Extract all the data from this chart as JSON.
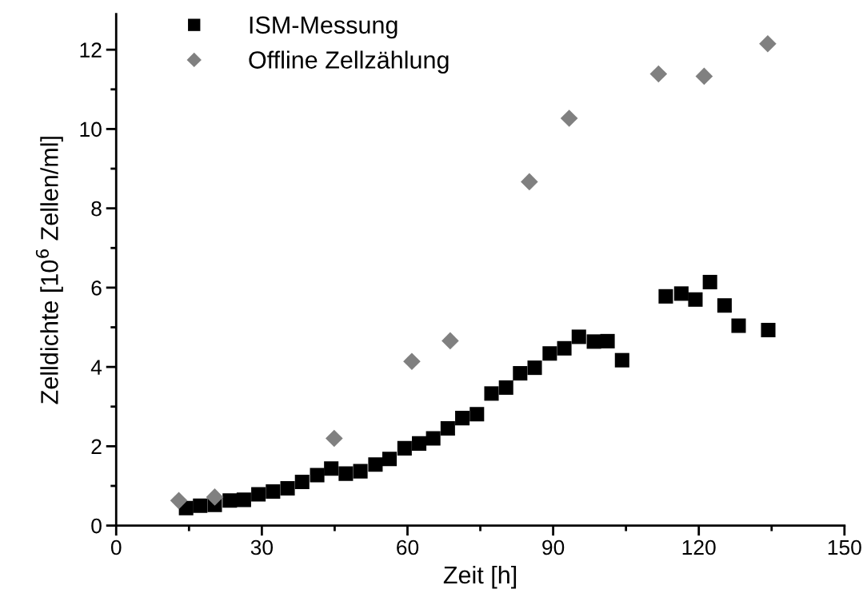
{
  "chart_data": {
    "type": "scatter",
    "xlabel": "Zeit [h]",
    "ylabel": "Zelldichte [10$^{6}$ Zellen/ml]",
    "xlim": [
      0,
      150
    ],
    "xticks": [
      0,
      30,
      60,
      90,
      120,
      150
    ],
    "ylim": [
      0,
      12.9
    ],
    "yticks": [
      0,
      2,
      4,
      6,
      8,
      10,
      12
    ],
    "grid": false,
    "legend": "top left",
    "series": [
      {
        "name": "ISM-Messung",
        "color": "#000000",
        "marker": "square",
        "x": [
          14.4,
          17.3,
          20.3,
          23.4,
          26.3,
          29.3,
          32.3,
          35.3,
          38.3,
          41.4,
          44.3,
          47.3,
          50.3,
          53.4,
          56.3,
          59.4,
          62.4,
          65.3,
          68.3,
          71.3,
          74.3,
          77.3,
          80.3,
          83.2,
          86.2,
          89.3,
          92.3,
          95.3,
          98.4,
          101.2,
          104.2,
          113.2,
          116.4,
          119.3,
          122.3,
          125.3,
          128.2,
          134.3
        ],
        "values": [
          0.44,
          0.5,
          0.52,
          0.63,
          0.65,
          0.79,
          0.86,
          0.94,
          1.1,
          1.27,
          1.44,
          1.31,
          1.37,
          1.54,
          1.68,
          1.95,
          2.07,
          2.2,
          2.45,
          2.71,
          2.81,
          3.33,
          3.48,
          3.84,
          3.98,
          4.34,
          4.47,
          4.76,
          4.64,
          4.65,
          4.17,
          5.78,
          5.85,
          5.7,
          6.14,
          5.55,
          5.04,
          4.93
        ]
      },
      {
        "name": "Offline Zellzählung",
        "color": "#808080",
        "marker": "diamond",
        "x": [
          12.9,
          20.3,
          44.9,
          60.9,
          68.8,
          85.1,
          93.3,
          111.7,
          121.1,
          134.2
        ],
        "values": [
          0.63,
          0.72,
          2.2,
          4.14,
          4.66,
          8.67,
          10.27,
          11.39,
          11.33,
          12.15
        ]
      }
    ]
  }
}
